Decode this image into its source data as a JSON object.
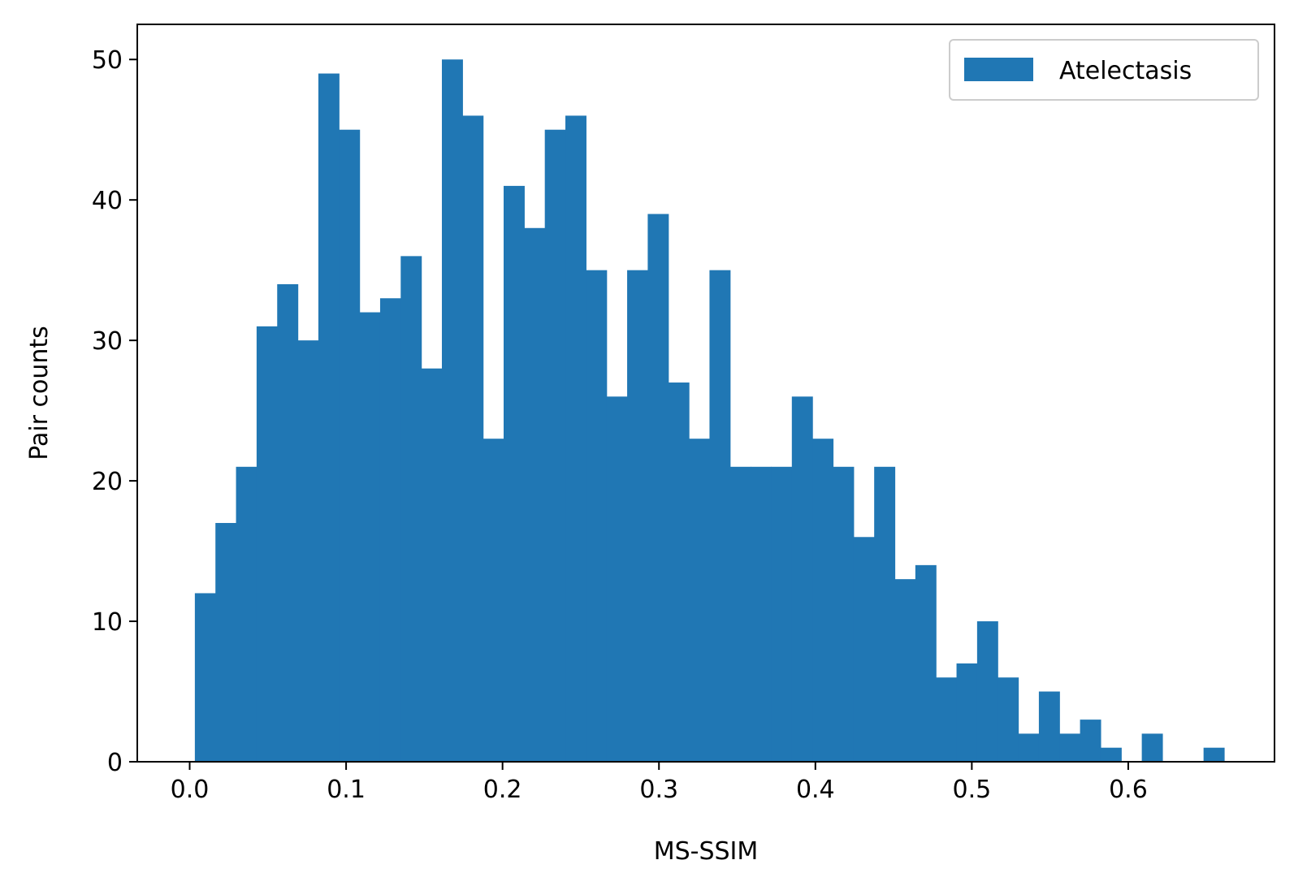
{
  "chart_data": {
    "type": "bar",
    "title": "",
    "xlabel": "MS-SSIM",
    "ylabel": "Pair counts",
    "xlim": [
      -0.0335,
      0.6935
    ],
    "ylim": [
      0,
      52.5
    ],
    "x_ticks": [
      0.0,
      0.1,
      0.2,
      0.3,
      0.4,
      0.5,
      0.6
    ],
    "x_tick_labels": [
      "0.0",
      "0.1",
      "0.2",
      "0.3",
      "0.4",
      "0.5",
      "0.6"
    ],
    "y_ticks": [
      0,
      10,
      20,
      30,
      40,
      50
    ],
    "y_tick_labels": [
      "0",
      "10",
      "20",
      "30",
      "40",
      "50"
    ],
    "grid": false,
    "legend": {
      "position": "top-right",
      "entries": [
        "Atelectasis"
      ]
    },
    "series": [
      {
        "name": "Atelectasis",
        "color": "#2077b4",
        "bin_start": 0.0033,
        "bin_width": 0.01316,
        "values": [
          12,
          17,
          21,
          31,
          34,
          30,
          49,
          45,
          32,
          33,
          36,
          28,
          50,
          46,
          23,
          41,
          38,
          45,
          46,
          35,
          26,
          35,
          39,
          27,
          23,
          35,
          21,
          21,
          21,
          26,
          23,
          21,
          16,
          21,
          13,
          14,
          6,
          7,
          10,
          6,
          2,
          5,
          2,
          3,
          1,
          0,
          2,
          0,
          0,
          1
        ]
      }
    ]
  }
}
